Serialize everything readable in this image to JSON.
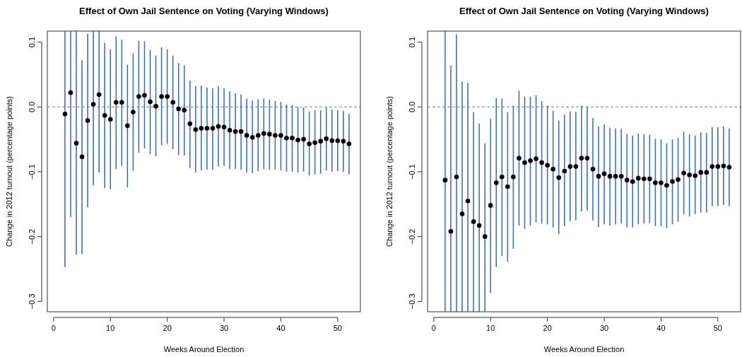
{
  "chart_data": [
    {
      "type": "scatter",
      "title": "Effect of Own Jail Sentence on Voting (Varying Windows)",
      "xlabel": "Weeks Around Election",
      "ylabel": "Change in 2012 turnout (percentage points)",
      "marker": "circle",
      "xlim": [
        -1.1,
        54
      ],
      "ylim": [
        -0.316,
        0.117
      ],
      "xticks": [
        0,
        10,
        20,
        30,
        40,
        50
      ],
      "yticks": [
        {
          "value": -0.3,
          "label": "−0.3"
        },
        {
          "value": -0.2,
          "label": "−0.2"
        },
        {
          "value": -0.1,
          "label": "−0.1"
        },
        {
          "value": 0,
          "label": "0.0"
        },
        {
          "value": 0.1,
          "label": "0.1"
        }
      ],
      "ref_lines": [
        {
          "axis": "y",
          "value": 0,
          "line_style": "dashed",
          "color": "#808080"
        }
      ],
      "x": [
        2,
        3,
        4,
        5,
        6,
        7,
        8,
        9,
        10,
        11,
        12,
        13,
        14,
        15,
        16,
        17,
        18,
        19,
        20,
        21,
        22,
        23,
        24,
        25,
        26,
        27,
        28,
        29,
        30,
        31,
        32,
        33,
        34,
        35,
        36,
        37,
        38,
        39,
        40,
        41,
        42,
        43,
        44,
        45,
        46,
        47,
        48,
        49,
        50,
        51,
        52
      ],
      "series": [
        {
          "color": "#000000",
          "values": [
            -0.011,
            0.022,
            -0.056,
            -0.077,
            -0.021,
            0.004,
            0.019,
            -0.013,
            -0.019,
            0.007,
            0.007,
            -0.029,
            -0.008,
            0.016,
            0.018,
            0.008,
            0.001,
            0.016,
            0.016,
            0.007,
            -0.003,
            -0.005,
            -0.026,
            -0.035,
            -0.033,
            -0.033,
            -0.033,
            -0.03,
            -0.031,
            -0.036,
            -0.038,
            -0.038,
            -0.044,
            -0.047,
            -0.044,
            -0.041,
            -0.042,
            -0.044,
            -0.044,
            -0.048,
            -0.048,
            -0.051,
            -0.05,
            -0.057,
            -0.055,
            -0.053,
            -0.049,
            -0.052,
            -0.052,
            -0.053,
            -0.057
          ],
          "errors": [
            [
              -0.247,
              0.117
            ],
            [
              -0.17,
              0.117
            ],
            [
              -0.228,
              0.117
            ],
            [
              -0.227,
              0.072
            ],
            [
              -0.155,
              0.113
            ],
            [
              -0.121,
              0.117
            ],
            [
              -0.101,
              0.117
            ],
            [
              -0.125,
              0.099
            ],
            [
              -0.127,
              0.089
            ],
            [
              -0.096,
              0.109
            ],
            [
              -0.091,
              0.104
            ],
            [
              -0.124,
              0.065
            ],
            [
              -0.098,
              0.082
            ],
            [
              -0.071,
              0.102
            ],
            [
              -0.064,
              0.101
            ],
            [
              -0.073,
              0.088
            ],
            [
              -0.076,
              0.079
            ],
            [
              -0.059,
              0.092
            ],
            [
              -0.057,
              0.089
            ],
            [
              -0.065,
              0.079
            ],
            [
              -0.074,
              0.068
            ],
            [
              -0.075,
              0.064
            ],
            [
              -0.094,
              0.041
            ],
            [
              -0.101,
              0.032
            ],
            [
              -0.098,
              0.033
            ],
            [
              -0.097,
              0.03
            ],
            [
              -0.097,
              0.029
            ],
            [
              -0.092,
              0.032
            ],
            [
              -0.091,
              0.029
            ],
            [
              -0.096,
              0.024
            ],
            [
              -0.096,
              0.021
            ],
            [
              -0.097,
              0.019
            ],
            [
              -0.101,
              0.013
            ],
            [
              -0.102,
              0.01
            ],
            [
              -0.099,
              0.012
            ],
            [
              -0.096,
              0.013
            ],
            [
              -0.097,
              0.011
            ],
            [
              -0.097,
              0.009
            ],
            [
              -0.098,
              0.008
            ],
            [
              -0.1,
              0.004
            ],
            [
              -0.1,
              0.003
            ],
            [
              -0.101,
              0.0
            ],
            [
              -0.1,
              -0.001
            ],
            [
              -0.106,
              -0.007
            ],
            [
              -0.104,
              -0.005
            ],
            [
              -0.103,
              -0.005
            ],
            [
              -0.098,
              -0.001
            ],
            [
              -0.1,
              -0.004
            ],
            [
              -0.099,
              -0.005
            ],
            [
              -0.1,
              -0.006
            ],
            [
              -0.104,
              -0.011
            ]
          ]
        }
      ]
    },
    {
      "type": "scatter",
      "title": "Effect of Own Jail Sentence on Voting (Varying Windows)",
      "xlabel": "Weeks Around Election",
      "ylabel": "Change in 2012 turnout (percentage points)",
      "marker": "circle",
      "xlim": [
        -1.1,
        54
      ],
      "ylim": [
        -0.316,
        0.117
      ],
      "xticks": [
        0,
        10,
        20,
        30,
        40,
        50
      ],
      "yticks": [
        {
          "value": -0.3,
          "label": "−0.3"
        },
        {
          "value": -0.2,
          "label": "−0.2"
        },
        {
          "value": -0.1,
          "label": "−0.1"
        },
        {
          "value": 0,
          "label": "0.0"
        },
        {
          "value": 0.1,
          "label": "0.1"
        }
      ],
      "ref_lines": [
        {
          "axis": "y",
          "value": 0,
          "line_style": "dashed",
          "color": "#808080"
        }
      ],
      "x": [
        2,
        3,
        4,
        5,
        6,
        7,
        8,
        9,
        10,
        11,
        12,
        13,
        14,
        15,
        16,
        17,
        18,
        19,
        20,
        21,
        22,
        23,
        24,
        25,
        26,
        27,
        28,
        29,
        30,
        31,
        32,
        33,
        34,
        35,
        36,
        37,
        38,
        39,
        40,
        41,
        42,
        43,
        44,
        45,
        46,
        47,
        48,
        49,
        50,
        51,
        52
      ],
      "series": [
        {
          "color": "#000000",
          "values": [
            -0.113,
            -0.192,
            -0.108,
            -0.165,
            -0.145,
            -0.177,
            -0.183,
            -0.2,
            -0.152,
            -0.117,
            -0.108,
            -0.123,
            -0.108,
            -0.079,
            -0.086,
            -0.083,
            -0.08,
            -0.086,
            -0.09,
            -0.096,
            -0.109,
            -0.099,
            -0.092,
            -0.092,
            -0.079,
            -0.079,
            -0.096,
            -0.107,
            -0.103,
            -0.107,
            -0.107,
            -0.107,
            -0.113,
            -0.115,
            -0.11,
            -0.111,
            -0.111,
            -0.117,
            -0.117,
            -0.121,
            -0.115,
            -0.112,
            -0.102,
            -0.105,
            -0.106,
            -0.101,
            -0.101,
            -0.092,
            -0.092,
            -0.091,
            -0.093
          ],
          "errors": [
            [
              -0.316,
              0.117
            ],
            [
              -0.316,
              0.064
            ],
            [
              -0.316,
              0.112
            ],
            [
              -0.316,
              0.039
            ],
            [
              -0.316,
              0.037
            ],
            [
              -0.316,
              -0.008
            ],
            [
              -0.316,
              -0.026
            ],
            [
              -0.316,
              -0.056
            ],
            [
              -0.287,
              -0.018
            ],
            [
              -0.247,
              0.014
            ],
            [
              -0.23,
              0.013
            ],
            [
              -0.239,
              -0.008
            ],
            [
              -0.219,
              0.002
            ],
            [
              -0.183,
              0.025
            ],
            [
              -0.188,
              0.016
            ],
            [
              -0.183,
              0.016
            ],
            [
              -0.178,
              0.018
            ],
            [
              -0.18,
              0.009
            ],
            [
              -0.181,
              0.002
            ],
            [
              -0.186,
              -0.006
            ],
            [
              -0.196,
              -0.021
            ],
            [
              -0.184,
              -0.012
            ],
            [
              -0.176,
              -0.007
            ],
            [
              -0.175,
              -0.008
            ],
            [
              -0.161,
              0.002
            ],
            [
              -0.16,
              0.0
            ],
            [
              -0.175,
              -0.017
            ],
            [
              -0.185,
              -0.03
            ],
            [
              -0.181,
              -0.027
            ],
            [
              -0.183,
              -0.032
            ],
            [
              -0.181,
              -0.033
            ],
            [
              -0.18,
              -0.034
            ],
            [
              -0.186,
              -0.042
            ],
            [
              -0.186,
              -0.044
            ],
            [
              -0.181,
              -0.041
            ],
            [
              -0.18,
              -0.042
            ],
            [
              -0.179,
              -0.043
            ],
            [
              -0.184,
              -0.049
            ],
            [
              -0.184,
              -0.05
            ],
            [
              -0.187,
              -0.056
            ],
            [
              -0.181,
              -0.05
            ],
            [
              -0.177,
              -0.048
            ],
            [
              -0.166,
              -0.038
            ],
            [
              -0.169,
              -0.042
            ],
            [
              -0.165,
              -0.044
            ],
            [
              -0.163,
              -0.039
            ],
            [
              -0.163,
              -0.04
            ],
            [
              -0.153,
              -0.031
            ],
            [
              -0.153,
              -0.031
            ],
            [
              -0.151,
              -0.03
            ],
            [
              -0.153,
              -0.033
            ]
          ]
        }
      ]
    }
  ]
}
